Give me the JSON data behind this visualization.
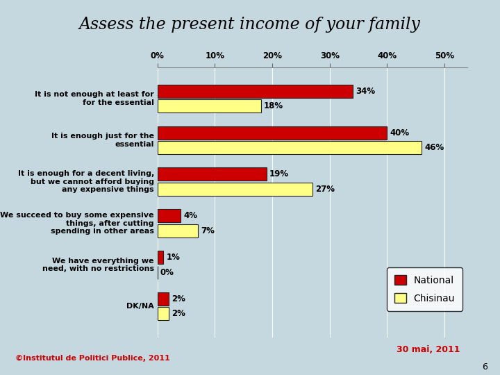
{
  "title": "Assess the present income of your family",
  "categories": [
    "It is not enough at least for\nfor the essential",
    "It is enough just for the\nessential",
    "It is enough for a decent living,\nbut we cannot afford buying\nany expensive things",
    "We succeed to buy some expensive\nthings, after cutting\nspending in other areas",
    "We have everything we\nneed, with no restrictions",
    "DK/NA"
  ],
  "national": [
    34,
    40,
    19,
    4,
    1,
    2
  ],
  "chisinau": [
    18,
    46,
    27,
    7,
    0,
    2
  ],
  "national_color": "#cc0000",
  "chisinau_color": "#ffff88",
  "bar_edge_color": "#222222",
  "background_color": "#c5d8e0",
  "xlim": [
    0,
    54
  ],
  "xticks": [
    0,
    10,
    20,
    30,
    40,
    50
  ],
  "xticklabels": [
    "0%",
    "10%",
    "20%",
    "30%",
    "40%",
    "50%"
  ],
  "legend_national": "National",
  "legend_chisinau": "Chisinau",
  "copyright_text": "©Institutul de Politici Publice, 2011",
  "date_text": "30 mai, 2011",
  "page_number": "6",
  "title_fontsize": 17,
  "label_fontsize": 8,
  "bar_label_fontsize": 8.5,
  "legend_fontsize": 10,
  "bar_height": 0.32,
  "bar_gap": 0.04
}
